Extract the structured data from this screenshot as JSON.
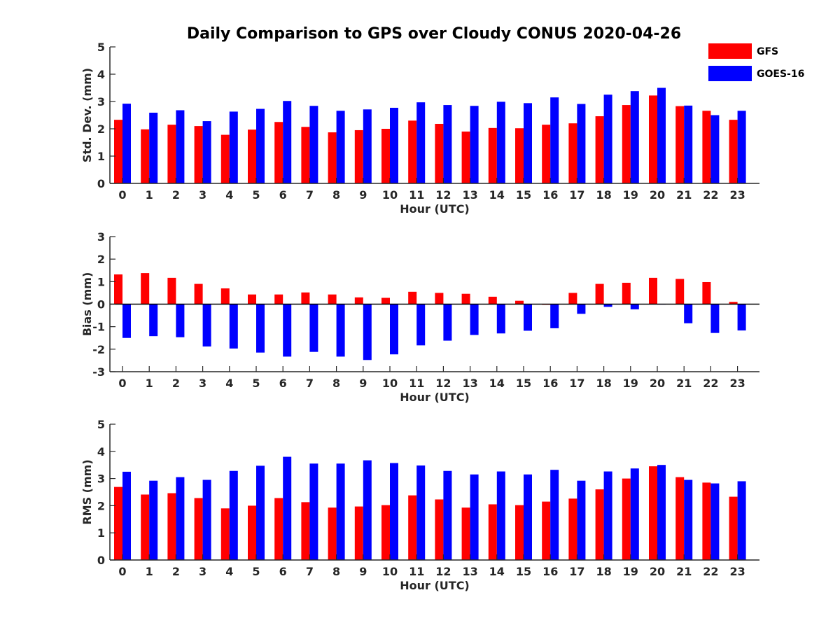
{
  "figure": {
    "title": "Daily Comparison to GPS over Cloudy CONUS 2020-04-26",
    "legend": {
      "placement": "top-right",
      "entries": [
        {
          "name": "GFS",
          "color": "#ff0000"
        },
        {
          "name": "GOES-16",
          "color": "#0000ff"
        }
      ]
    }
  },
  "chart_data": [
    {
      "type": "bar",
      "xlabel": "Hour (UTC)",
      "ylabel": "Std. Dev. (mm)",
      "ylim": [
        0,
        5
      ],
      "yticks": [
        0,
        1,
        2,
        3,
        4,
        5
      ],
      "categories": [
        "0",
        "1",
        "2",
        "3",
        "4",
        "5",
        "6",
        "7",
        "8",
        "9",
        "10",
        "11",
        "12",
        "13",
        "14",
        "15",
        "16",
        "17",
        "18",
        "19",
        "20",
        "21",
        "22",
        "23"
      ],
      "series": [
        {
          "name": "GFS",
          "color": "#ff0000",
          "values": [
            2.33,
            1.98,
            2.15,
            2.1,
            1.78,
            1.97,
            2.25,
            2.07,
            1.87,
            1.95,
            2.0,
            2.3,
            2.18,
            1.9,
            2.03,
            2.02,
            2.15,
            2.2,
            2.46,
            2.87,
            3.22,
            2.83,
            2.66,
            2.33
          ]
        },
        {
          "name": "GOES-16",
          "color": "#0000ff",
          "values": [
            2.92,
            2.59,
            2.68,
            2.28,
            2.63,
            2.73,
            3.02,
            2.84,
            2.66,
            2.71,
            2.77,
            2.97,
            2.87,
            2.84,
            2.99,
            2.94,
            3.15,
            2.91,
            3.25,
            3.38,
            3.5,
            2.85,
            2.5,
            2.66
          ]
        }
      ]
    },
    {
      "type": "bar",
      "xlabel": "Hour (UTC)",
      "ylabel": "Bias (mm)",
      "ylim": [
        -3,
        3
      ],
      "yticks": [
        -3,
        -2,
        -1,
        0,
        1,
        2,
        3
      ],
      "zero_line": true,
      "categories": [
        "0",
        "1",
        "2",
        "3",
        "4",
        "5",
        "6",
        "7",
        "8",
        "9",
        "10",
        "11",
        "12",
        "13",
        "14",
        "15",
        "16",
        "17",
        "18",
        "19",
        "20",
        "21",
        "22",
        "23"
      ],
      "series": [
        {
          "name": "GFS",
          "color": "#ff0000",
          "values": [
            1.32,
            1.38,
            1.17,
            0.9,
            0.7,
            0.43,
            0.43,
            0.52,
            0.43,
            0.3,
            0.28,
            0.55,
            0.5,
            0.46,
            0.33,
            0.15,
            -0.03,
            0.5,
            0.9,
            0.95,
            1.17,
            1.12,
            0.98,
            0.1
          ]
        },
        {
          "name": "GOES-16",
          "color": "#0000ff",
          "values": [
            -1.5,
            -1.42,
            -1.47,
            -1.88,
            -1.97,
            -2.15,
            -2.33,
            -2.12,
            -2.33,
            -2.48,
            -2.23,
            -1.83,
            -1.62,
            -1.37,
            -1.3,
            -1.18,
            -1.07,
            -0.43,
            -0.12,
            -0.23,
            -0.02,
            -0.85,
            -1.28,
            -1.17
          ]
        }
      ]
    },
    {
      "type": "bar",
      "xlabel": "Hour (UTC)",
      "ylabel": "RMS (mm)",
      "ylim": [
        0,
        5
      ],
      "yticks": [
        0,
        1,
        2,
        3,
        4,
        5
      ],
      "categories": [
        "0",
        "1",
        "2",
        "3",
        "4",
        "5",
        "6",
        "7",
        "8",
        "9",
        "10",
        "11",
        "12",
        "13",
        "14",
        "15",
        "16",
        "17",
        "18",
        "19",
        "20",
        "21",
        "22",
        "23"
      ],
      "series": [
        {
          "name": "GFS",
          "color": "#ff0000",
          "values": [
            2.69,
            2.41,
            2.46,
            2.28,
            1.9,
            2.0,
            2.28,
            2.13,
            1.93,
            1.97,
            2.02,
            2.38,
            2.23,
            1.93,
            2.05,
            2.02,
            2.15,
            2.26,
            2.6,
            3.0,
            3.45,
            3.05,
            2.85,
            2.33
          ]
        },
        {
          "name": "GOES-16",
          "color": "#0000ff",
          "values": [
            3.25,
            2.92,
            3.05,
            2.95,
            3.28,
            3.47,
            3.8,
            3.55,
            3.55,
            3.67,
            3.57,
            3.48,
            3.28,
            3.15,
            3.26,
            3.15,
            3.32,
            2.92,
            3.26,
            3.37,
            3.5,
            2.95,
            2.82,
            2.9
          ]
        }
      ]
    }
  ]
}
